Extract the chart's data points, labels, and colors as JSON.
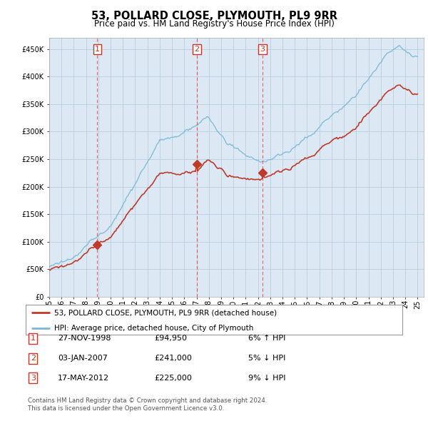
{
  "title": "53, POLLARD CLOSE, PLYMOUTH, PL9 9RR",
  "subtitle": "Price paid vs. HM Land Registry's House Price Index (HPI)",
  "legend_line1": "53, POLLARD CLOSE, PLYMOUTH, PL9 9RR (detached house)",
  "legend_line2": "HPI: Average price, detached house, City of Plymouth",
  "footer1": "Contains HM Land Registry data © Crown copyright and database right 2024.",
  "footer2": "This data is licensed under the Open Government Licence v3.0.",
  "transactions": [
    {
      "num": 1,
      "date": "27-NOV-1998",
      "price": "£94,950",
      "change": "6% ↑ HPI"
    },
    {
      "num": 2,
      "date": "03-JAN-2007",
      "price": "£241,000",
      "change": "5% ↓ HPI"
    },
    {
      "num": 3,
      "date": "17-MAY-2012",
      "price": "£225,000",
      "change": "9% ↓ HPI"
    }
  ],
  "sale_years": [
    1998.92,
    2007.01,
    2012.38
  ],
  "sale_prices": [
    94950,
    241000,
    225000
  ],
  "hpi_color": "#7bb8d4",
  "price_color": "#c0392b",
  "background": "#dce9f5",
  "plot_bg": "#dce9f5",
  "outer_bg": "#ffffff",
  "grid_color": "#b8cfe0",
  "xmin": 1995,
  "xmax": 2025.5,
  "ymin": 0,
  "ymax": 470000
}
